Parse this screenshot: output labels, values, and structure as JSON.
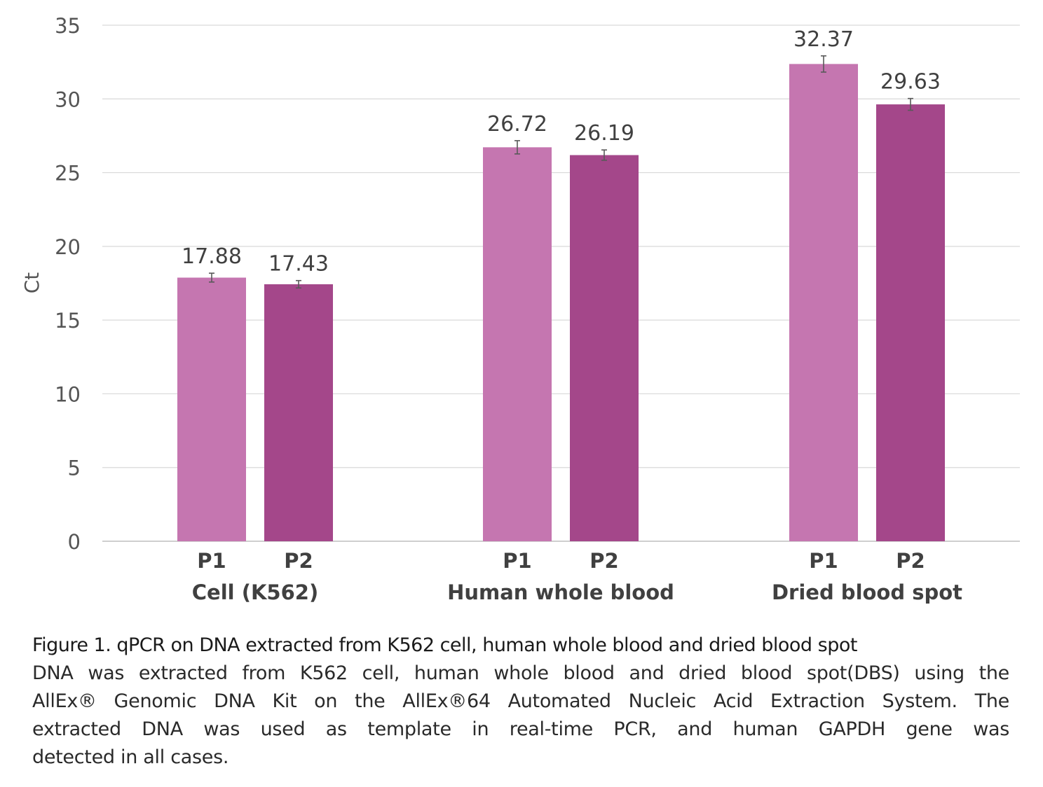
{
  "chart_data": {
    "type": "bar",
    "ylabel": "Ct",
    "ylim": [
      0,
      35
    ],
    "yticks": [
      0,
      5,
      10,
      15,
      20,
      25,
      30,
      35
    ],
    "grid": true,
    "groups": [
      {
        "name": "Cell (K562)",
        "bars": [
          {
            "label": "P1",
            "value": 17.88,
            "error": 0.3,
            "value_label": "17.88",
            "color": "#c576b0"
          },
          {
            "label": "P2",
            "value": 17.43,
            "error": 0.25,
            "value_label": "17.43",
            "color": "#a4478a"
          }
        ]
      },
      {
        "name": "Human whole blood",
        "bars": [
          {
            "label": "P1",
            "value": 26.72,
            "error": 0.45,
            "value_label": "26.72",
            "color": "#c576b0"
          },
          {
            "label": "P2",
            "value": 26.19,
            "error": 0.35,
            "value_label": "26.19",
            "color": "#a4478a"
          }
        ]
      },
      {
        "name": "Dried blood spot",
        "bars": [
          {
            "label": "P1",
            "value": 32.37,
            "error": 0.55,
            "value_label": "32.37",
            "color": "#c576b0"
          },
          {
            "label": "P2",
            "value": 29.63,
            "error": 0.4,
            "value_label": "29.63",
            "color": "#a4478a"
          }
        ]
      }
    ]
  },
  "caption": {
    "title": "Figure 1. qPCR on DNA extracted from K562 cell, human whole blood and dried blood spot",
    "lines": [
      "DNA was extracted from K562 cell, human whole blood and dried blood spot(DBS) using the",
      "AllEx® Genomic DNA Kit on the AllEx®64 Automated Nucleic Acid Extraction System. The",
      "extracted DNA was used as template in real-time PCR, and human GAPDH gene was",
      "detected in all cases."
    ]
  }
}
